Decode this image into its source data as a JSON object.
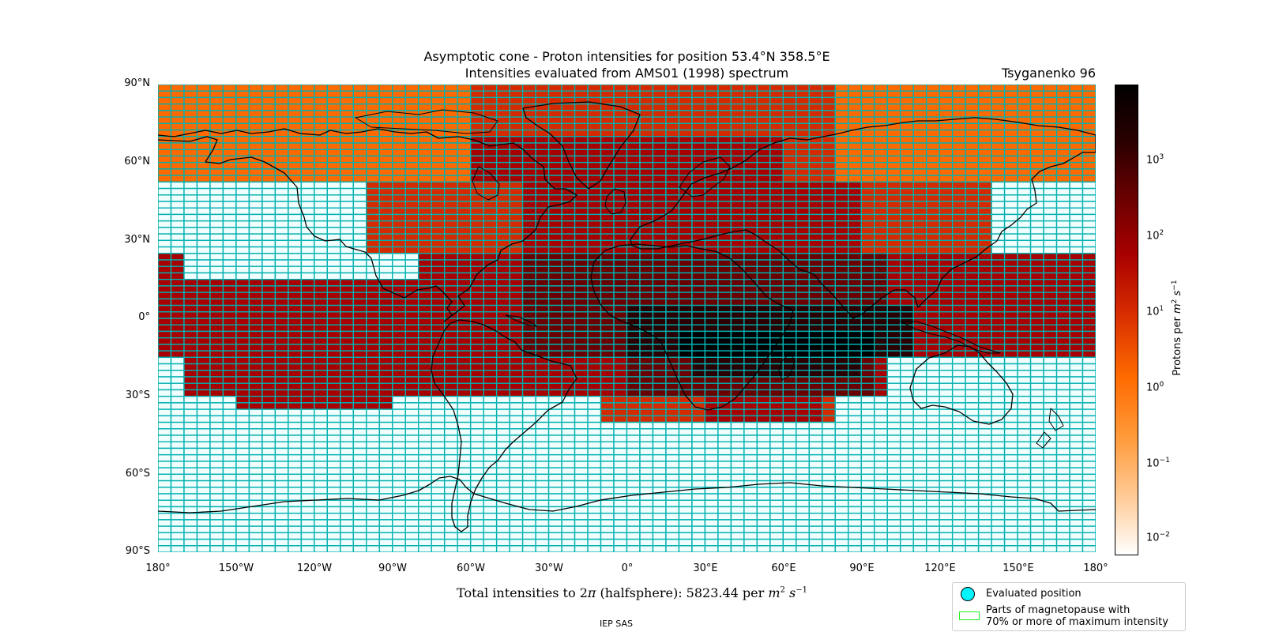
{
  "title_line1": "Asymptotic cone - Proton intensities for position 53.4°N 358.5°E",
  "title_line2": "Intensities evaluated from AMS01 (1998) spectrum",
  "model": "Tsyganenko 96",
  "lat_ticks": [
    "90°N",
    "60°N",
    "30°N",
    "0°",
    "30°S",
    "60°S",
    "90°S"
  ],
  "lon_ticks": [
    "180°",
    "150°W",
    "120°W",
    "90°W",
    "60°W",
    "30°W",
    "0°",
    "30°E",
    "60°E",
    "90°E",
    "120°E",
    "150°E",
    "180°"
  ],
  "colorbar": {
    "label_text": "Protons per ",
    "label_unit": "m",
    "label_unit_exp": "2",
    "label_unit2": " s",
    "label_unit2_exp": "−1",
    "tick_base": "10",
    "tick_exponents": [
      "3",
      "2",
      "1",
      "0",
      "−1",
      "−2"
    ],
    "colors": [
      "#ffffff",
      "#ffcc99",
      "#ff9a3a",
      "#ff6a00",
      "#d52a00",
      "#a80000",
      "#6a0000",
      "#2a0000",
      "#000000"
    ]
  },
  "total": {
    "prefix": "Total intensities to 2",
    "pi": "π",
    "middle": " (halfsphere): 5823.44 per ",
    "unit": "m",
    "unit_exp": "2",
    "unit2": " s",
    "unit2_exp": "−1"
  },
  "footer": "IEP SAS",
  "legend": {
    "item1": "Evaluated position",
    "item2_line1": "Parts of magnetopause with",
    "item2_line2": "70% or more of maximum intensity"
  },
  "colors": {
    "grid_line": "#00b0b0",
    "empty_cell": "#f0fffe",
    "coastline": "#000000",
    "evaluated_position": "#00f5ff",
    "magnetopause_patch": "#22ee22"
  }
}
